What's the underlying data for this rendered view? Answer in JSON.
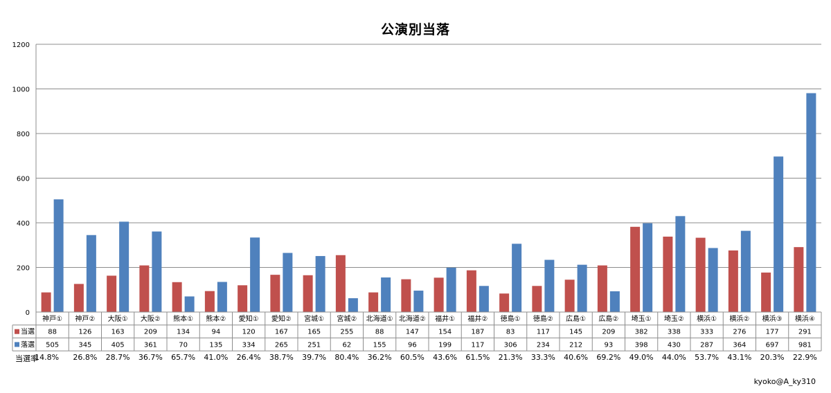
{
  "chart_data": {
    "type": "bar",
    "title": "公演別当落",
    "ylim": [
      0,
      1200
    ],
    "yticks": [
      0,
      200,
      400,
      600,
      800,
      1000,
      1200
    ],
    "grid": true,
    "categories": [
      "神戸①",
      "神戸②",
      "大阪①",
      "大阪②",
      "熊本①",
      "熊本②",
      "愛知①",
      "愛知②",
      "宮城①",
      "宮城②",
      "北海道①",
      "北海道②",
      "福井①",
      "福井②",
      "徳島①",
      "徳島②",
      "広島①",
      "広島②",
      "埼玉①",
      "埼玉②",
      "横浜①",
      "横浜②",
      "横浜③",
      "横浜④"
    ],
    "series": [
      {
        "name": "当選",
        "color": "#c0504d",
        "values": [
          88,
          126,
          163,
          209,
          134,
          94,
          120,
          167,
          165,
          255,
          88,
          147,
          154,
          187,
          83,
          117,
          145,
          209,
          382,
          338,
          333,
          276,
          177,
          291
        ]
      },
      {
        "name": "落選",
        "color": "#4f81bd",
        "values": [
          505,
          345,
          405,
          361,
          70,
          135,
          334,
          265,
          251,
          62,
          155,
          96,
          199,
          117,
          306,
          234,
          212,
          93,
          398,
          430,
          287,
          364,
          697,
          981
        ]
      }
    ],
    "rate_label": "当選率",
    "rates": [
      "14.8%",
      "26.8%",
      "28.7%",
      "36.7%",
      "65.7%",
      "41.0%",
      "26.4%",
      "38.7%",
      "39.7%",
      "80.4%",
      "36.2%",
      "60.5%",
      "43.6%",
      "61.5%",
      "21.3%",
      "33.3%",
      "40.6%",
      "69.2%",
      "49.0%",
      "44.0%",
      "53.7%",
      "43.1%",
      "20.3%",
      "22.9%"
    ]
  },
  "credit": "kyoko@A_ky310"
}
